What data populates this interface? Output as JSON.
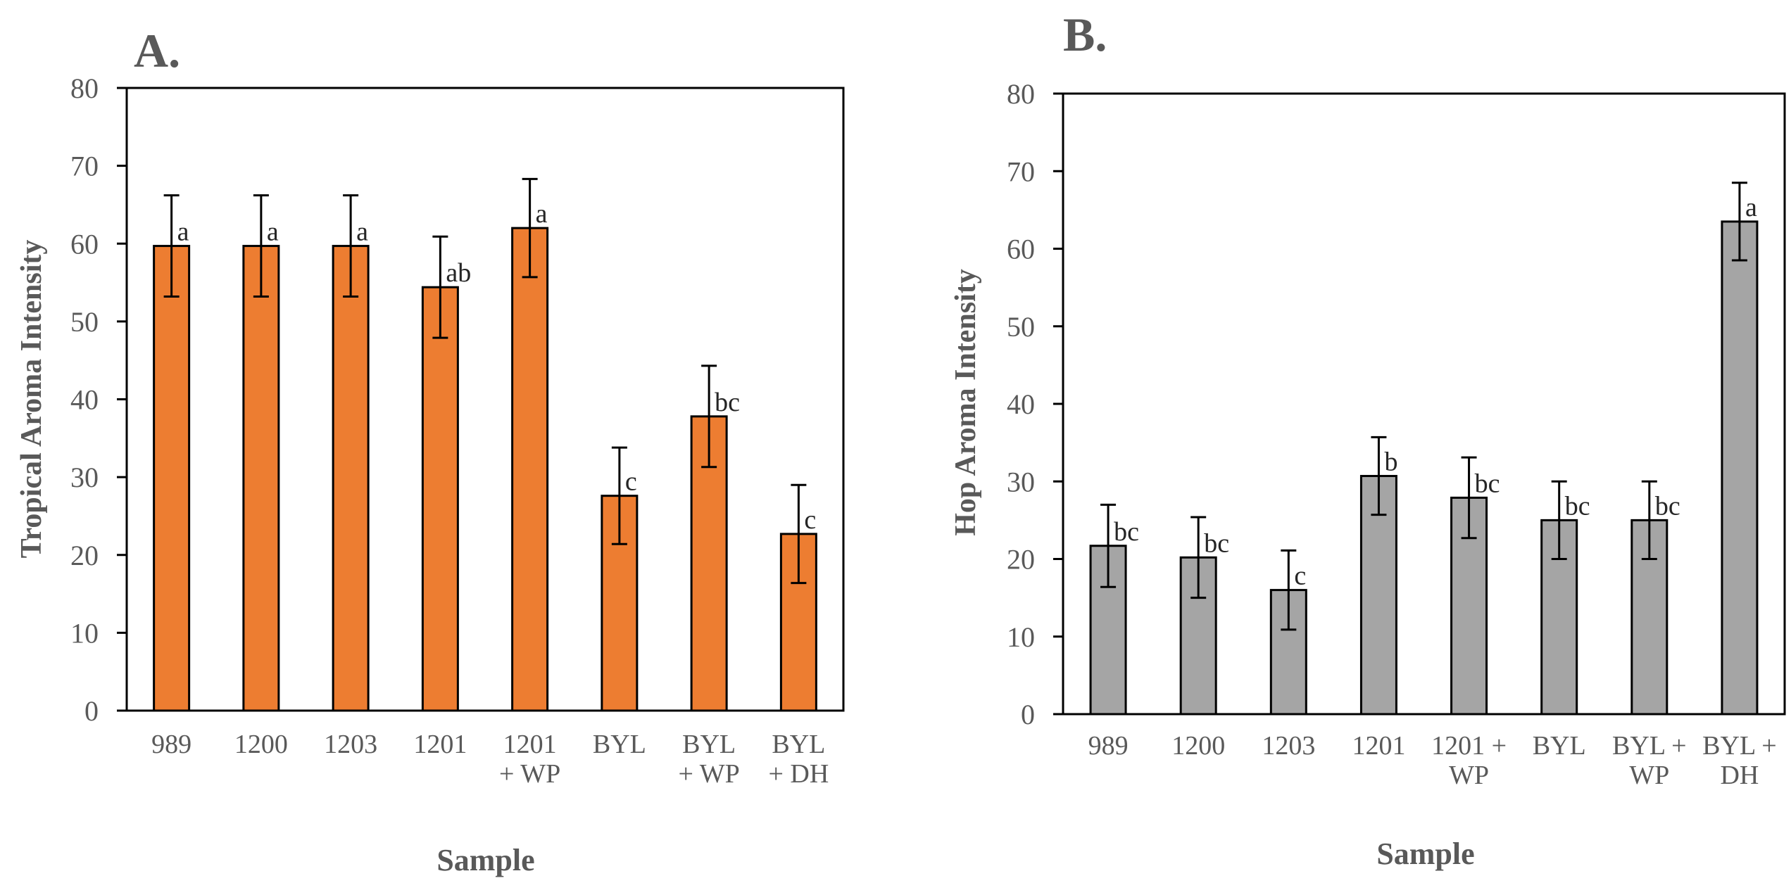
{
  "figure": {
    "panels": [
      {
        "label": "A."
      },
      {
        "label": "B."
      }
    ]
  },
  "chart_data": [
    {
      "type": "bar",
      "panel": "A.",
      "title": "",
      "xlabel": "Sample",
      "ylabel": "Tropical Aroma Intensity",
      "ylim": [
        0,
        80
      ],
      "yticks": [
        0,
        10,
        20,
        30,
        40,
        50,
        60,
        70,
        80
      ],
      "grid": false,
      "bar_color": "#ED7D31",
      "categories": [
        [
          "989"
        ],
        [
          "1200"
        ],
        [
          "1203"
        ],
        [
          "1201"
        ],
        [
          "1201",
          "+ WP"
        ],
        [
          "BYL"
        ],
        [
          "BYL",
          "+ WP"
        ],
        [
          "BYL",
          "+ DH"
        ]
      ],
      "values": [
        59.7,
        59.7,
        59.7,
        54.4,
        62.0,
        27.6,
        37.8,
        22.7
      ],
      "error": [
        6.5,
        6.5,
        6.5,
        6.5,
        6.3,
        6.2,
        6.5,
        6.3
      ],
      "annotations": [
        "a",
        "a",
        "a",
        "ab",
        "a",
        "c",
        "bc",
        "c"
      ]
    },
    {
      "type": "bar",
      "panel": "B.",
      "title": "",
      "xlabel": "Sample",
      "ylabel": "Hop Aroma Intensity",
      "ylim": [
        0,
        80
      ],
      "yticks": [
        0,
        10,
        20,
        30,
        40,
        50,
        60,
        70,
        80
      ],
      "grid": false,
      "bar_color": "#A5A5A5",
      "categories": [
        [
          "989"
        ],
        [
          "1200"
        ],
        [
          "1203"
        ],
        [
          "1201"
        ],
        [
          "1201 +",
          "WP"
        ],
        [
          "BYL"
        ],
        [
          "BYL +",
          "WP"
        ],
        [
          "BYL +",
          "DH"
        ]
      ],
      "values": [
        21.7,
        20.2,
        16.0,
        30.7,
        27.9,
        25.0,
        25.0,
        63.5
      ],
      "error": [
        5.3,
        5.2,
        5.1,
        5.0,
        5.2,
        5.0,
        5.0,
        5.0
      ],
      "annotations": [
        "bc",
        "bc",
        "c",
        "b",
        "bc",
        "bc",
        "bc",
        "a"
      ]
    }
  ]
}
